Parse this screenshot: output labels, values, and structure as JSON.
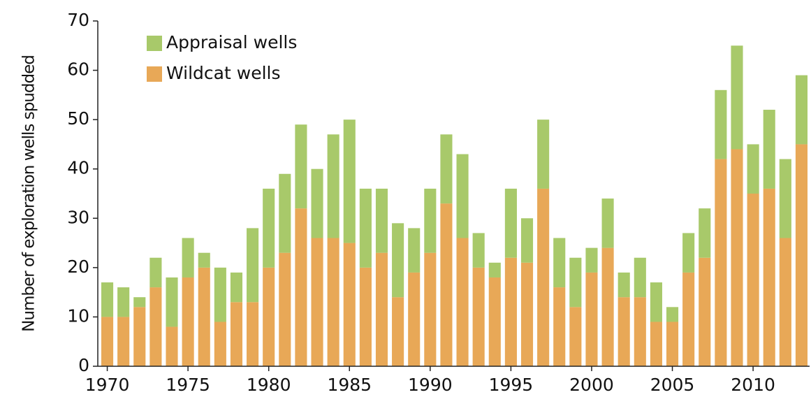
{
  "chart_data": {
    "type": "stacked-bar",
    "y_label": "Number of exploration wells spudded",
    "x": [
      1970,
      1971,
      1972,
      1973,
      1974,
      1975,
      1976,
      1977,
      1978,
      1979,
      1980,
      1981,
      1982,
      1983,
      1984,
      1985,
      1986,
      1987,
      1988,
      1989,
      1990,
      1991,
      1992,
      1993,
      1994,
      1995,
      1996,
      1997,
      1998,
      1999,
      2000,
      2001,
      2002,
      2003,
      2004,
      2005,
      2006,
      2007,
      2008,
      2009,
      2010,
      2011,
      2012,
      2013
    ],
    "series": [
      {
        "name": "Wildcat wells",
        "color": "#e8a857",
        "values": [
          10,
          10,
          12,
          16,
          8,
          18,
          20,
          9,
          13,
          13,
          20,
          23,
          32,
          26,
          26,
          25,
          20,
          23,
          14,
          19,
          23,
          33,
          26,
          20,
          18,
          22,
          21,
          36,
          16,
          12,
          19,
          24,
          14,
          14,
          9,
          9,
          19,
          22,
          42,
          44,
          35,
          36,
          26,
          45
        ]
      },
      {
        "name": "Appraisal wells",
        "color": "#a8c96a",
        "values": [
          7,
          6,
          2,
          6,
          10,
          8,
          3,
          11,
          6,
          15,
          16,
          16,
          17,
          14,
          21,
          25,
          16,
          13,
          15,
          9,
          13,
          14,
          17,
          7,
          3,
          14,
          9,
          14,
          10,
          10,
          5,
          10,
          5,
          8,
          8,
          3,
          8,
          10,
          14,
          21,
          10,
          16,
          16,
          14
        ]
      }
    ],
    "xlim": [
      1969.5,
      2013.5
    ],
    "xticks": [
      1970,
      1975,
      1980,
      1985,
      1990,
      1995,
      2000,
      2005,
      2010
    ],
    "ylim": [
      0,
      70
    ],
    "yticks": [
      0,
      10,
      20,
      30,
      40,
      50,
      60,
      70
    ],
    "legend": "top-left"
  }
}
